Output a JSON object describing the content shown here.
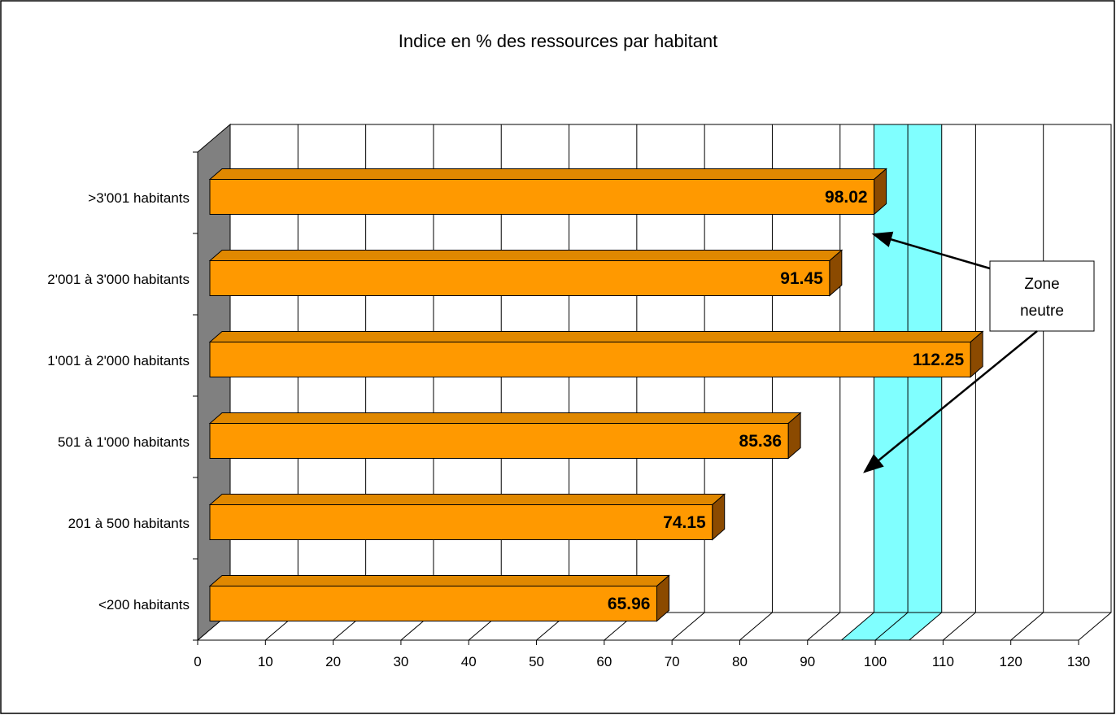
{
  "chart_data": {
    "type": "bar",
    "orientation": "horizontal",
    "title": "Indice en % des ressources par habitant",
    "categories": [
      ">3'001 habitants",
      "2'001 à 3'000 habitants",
      "1'001 à 2'000 habitants",
      "501 à 1'000 habitants",
      "201 à 500 habitants",
      "<200 habitants"
    ],
    "values": [
      98.02,
      91.45,
      112.25,
      85.36,
      74.15,
      65.96
    ],
    "value_labels": [
      "98.02",
      "91.45",
      "112.25",
      "85.36",
      "74.15",
      "65.96"
    ],
    "xlim": [
      0,
      130
    ],
    "xticks": [
      0,
      10,
      20,
      30,
      40,
      50,
      60,
      70,
      80,
      90,
      100,
      110,
      120,
      130
    ],
    "xtick_labels": [
      "0",
      "10",
      "20",
      "30",
      "40",
      "50",
      "60",
      "70",
      "80",
      "90",
      "100",
      "110",
      "120",
      "130"
    ],
    "grid": true,
    "neutral_zone": {
      "from": 95,
      "to": 105,
      "color": "#80FFFF"
    },
    "annotation": {
      "line1": "Zone",
      "line2": "neutre"
    },
    "colors": {
      "bar_front": "#FF9900",
      "bar_top": "#E08800",
      "bar_side": "#8B4A00",
      "wall": "#808080"
    }
  }
}
